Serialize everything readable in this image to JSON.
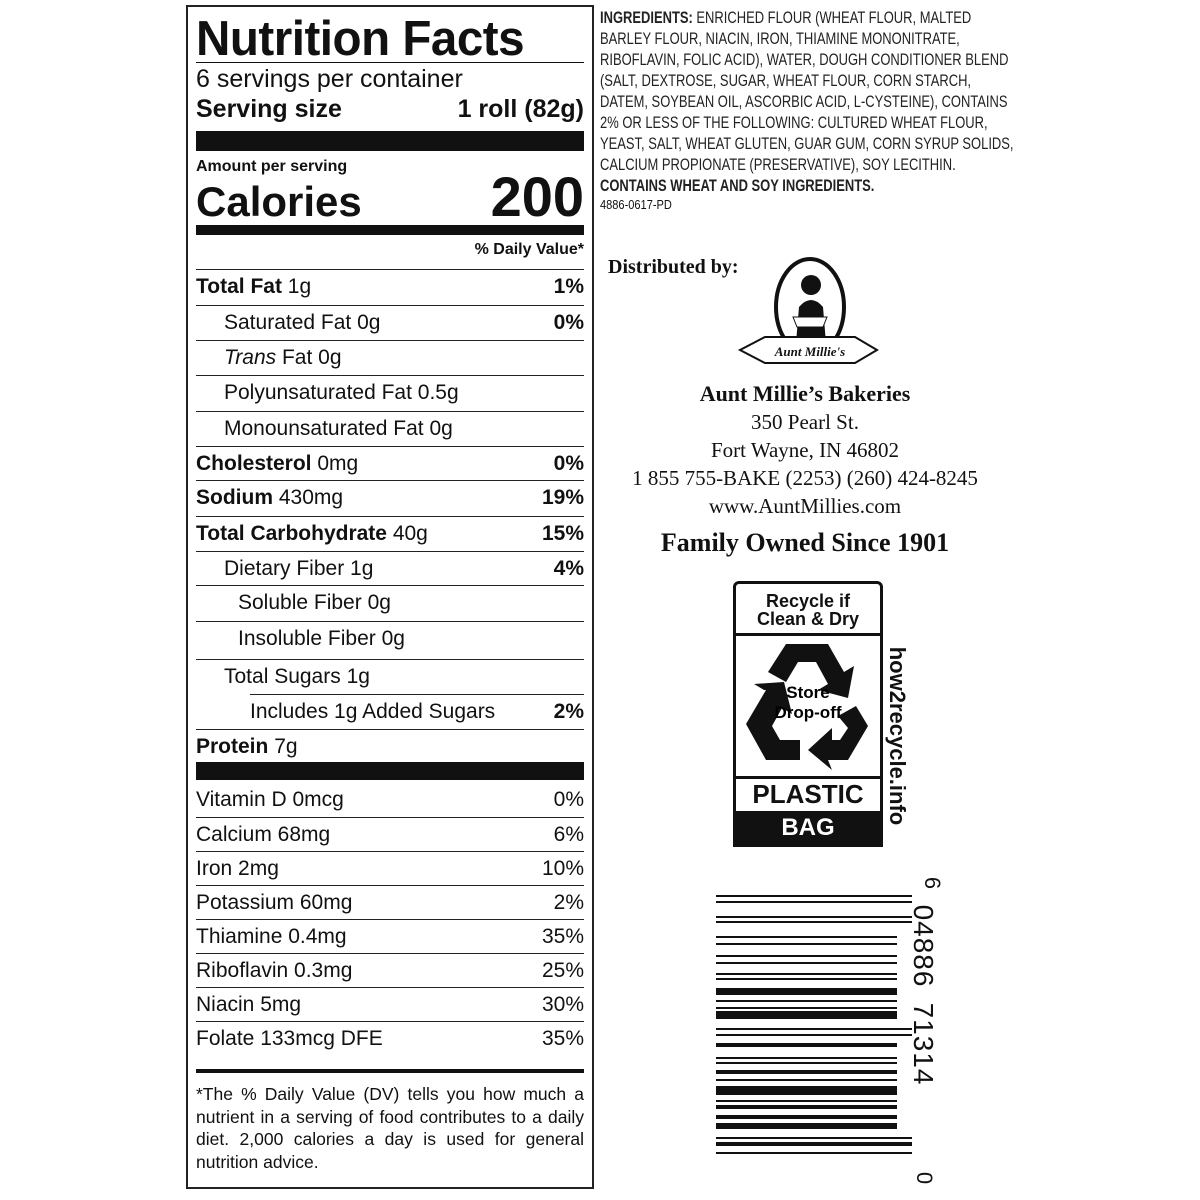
{
  "nutrition": {
    "title": "Nutrition Facts",
    "servings": "6 servings per container",
    "serving_size_label": "Serving size",
    "serving_size_value": "1 roll (82g)",
    "amount_per_serving": "Amount per serving",
    "calories_label": "Calories",
    "calories_value": "200",
    "dv_header": "% Daily Value*",
    "rows": [
      {
        "label": "Total Fat",
        "amount": "1g",
        "dv": "1%",
        "bold": true,
        "indent": 0
      },
      {
        "label": "Saturated Fat 0g",
        "amount": "",
        "dv": "0%",
        "bold": false,
        "indent": 1
      },
      {
        "label_italic": "Trans",
        "label": " Fat 0g",
        "amount": "",
        "dv": "",
        "bold": false,
        "indent": 1
      },
      {
        "label": "Polyunsaturated Fat 0.5g",
        "amount": "",
        "dv": "",
        "bold": false,
        "indent": 1
      },
      {
        "label": "Monounsaturated Fat 0g",
        "amount": "",
        "dv": "",
        "bold": false,
        "indent": 1
      },
      {
        "label": "Cholesterol",
        "amount": "0mg",
        "dv": "0%",
        "bold": true,
        "indent": 0
      },
      {
        "label": "Sodium",
        "amount": "430mg",
        "dv": "19%",
        "bold": true,
        "indent": 0
      },
      {
        "label": "Total Carbohydrate",
        "amount": "40g",
        "dv": "15%",
        "bold": true,
        "indent": 0
      },
      {
        "label": "Dietary Fiber 1g",
        "amount": "",
        "dv": "4%",
        "bold": false,
        "indent": 1
      },
      {
        "label": "Soluble Fiber 0g",
        "amount": "",
        "dv": "",
        "bold": false,
        "indent": 2
      },
      {
        "label": "Insoluble Fiber 0g",
        "amount": "",
        "dv": "",
        "bold": false,
        "indent": 2
      },
      {
        "label": "Total Sugars 1g",
        "amount": "",
        "dv": "",
        "bold": false,
        "indent": 1
      },
      {
        "label": "Includes 1g Added Sugars",
        "amount": "",
        "dv": "2%",
        "bold": false,
        "indent": 3
      },
      {
        "label": "Protein",
        "amount": "7g",
        "dv": "",
        "bold": true,
        "indent": 0
      }
    ],
    "vitamins": [
      {
        "label": "Vitamin D 0mcg",
        "dv": "0%"
      },
      {
        "label": "Calcium 68mg",
        "dv": "6%"
      },
      {
        "label": "Iron 2mg",
        "dv": "10%"
      },
      {
        "label": "Potassium 60mg",
        "dv": "2%"
      },
      {
        "label": "Thiamine 0.4mg",
        "dv": "35%"
      },
      {
        "label": "Riboflavin 0.3mg",
        "dv": "25%"
      },
      {
        "label": "Niacin 5mg",
        "dv": "30%"
      },
      {
        "label": "Folate 133mcg DFE",
        "dv": "35%"
      }
    ],
    "footnote": "*The % Daily Value (DV) tells you how much a nutrient in a serving of food contributes to a daily diet. 2,000 calories a day is used for general nutrition advice."
  },
  "ingredients": {
    "label": "INGREDIENTS:",
    "text": " ENRICHED FLOUR (WHEAT FLOUR, MALTED BARLEY FLOUR, NIACIN, IRON, THIAMINE MONONITRATE, RIBOFLAVIN, FOLIC ACID), WATER, DOUGH CONDITIONER BLEND (SALT, DEXTROSE, SUGAR, WHEAT FLOUR, CORN STARCH, DATEM, SOYBEAN OIL, ASCORBIC ACID, L-CYSTEINE), CONTAINS 2% OR LESS OF THE FOLLOWING: CULTURED WHEAT FLOUR, YEAST, SALT, WHEAT GLUTEN, GUAR GUM, CORN SYRUP SOLIDS, CALCIUM PROPIONATE (PRESERVATIVE), SOY LECITHIN.",
    "allergens": "CONTAINS WHEAT AND SOY INGREDIENTS.",
    "code": "4886-0617-PD"
  },
  "distributor": {
    "label": "Distributed by:",
    "logo_text": "Aunt Millie's",
    "name": "Aunt Millie’s Bakeries",
    "street": "350 Pearl St.",
    "city": "Fort Wayne, IN 46802",
    "phone": "1 855 755-BAKE (2253)  (260) 424-8245",
    "website": "www.AuntMillies.com",
    "tagline": "Family Owned Since 1901"
  },
  "recycle": {
    "top_line1": "Recycle if",
    "top_line2": "Clean & Dry",
    "center_line1": "Store",
    "center_line2": "Drop-off",
    "material": "PLASTIC",
    "type": "BAG",
    "site": "how2recycle.info",
    "icon": "recycle-arrows-icon"
  },
  "barcode": {
    "first_digit": "0",
    "left_digits": "71314",
    "right_digits": "04886",
    "last_digit": "6"
  }
}
